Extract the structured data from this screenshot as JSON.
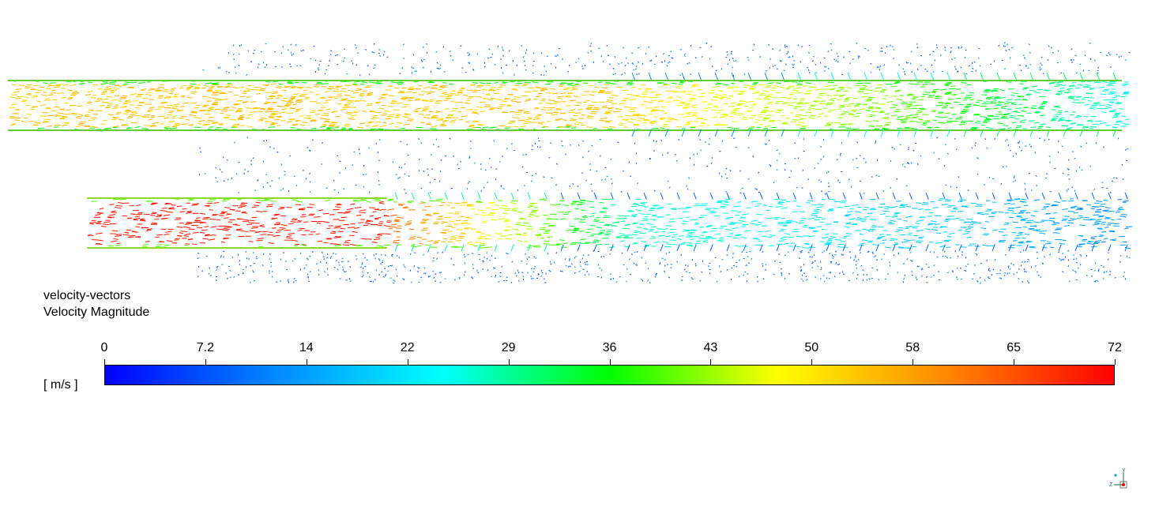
{
  "legend": {
    "title_line1": "velocity-vectors",
    "title_line2": "Velocity Magnitude",
    "unit": "[ m/s ]",
    "ticks": [
      "0",
      "7.2",
      "14",
      "22",
      "29",
      "36",
      "43",
      "50",
      "58",
      "65",
      "72"
    ],
    "range": [
      0,
      72
    ],
    "colormap": [
      "#0000ff",
      "#0088ff",
      "#00ffff",
      "#00ff00",
      "#ffff00",
      "#ff8800",
      "#ff0000"
    ]
  },
  "viewport": {
    "description_icon": "axis-triad-icon",
    "axis_labels": [
      "Y",
      "Z",
      "X"
    ]
  }
}
